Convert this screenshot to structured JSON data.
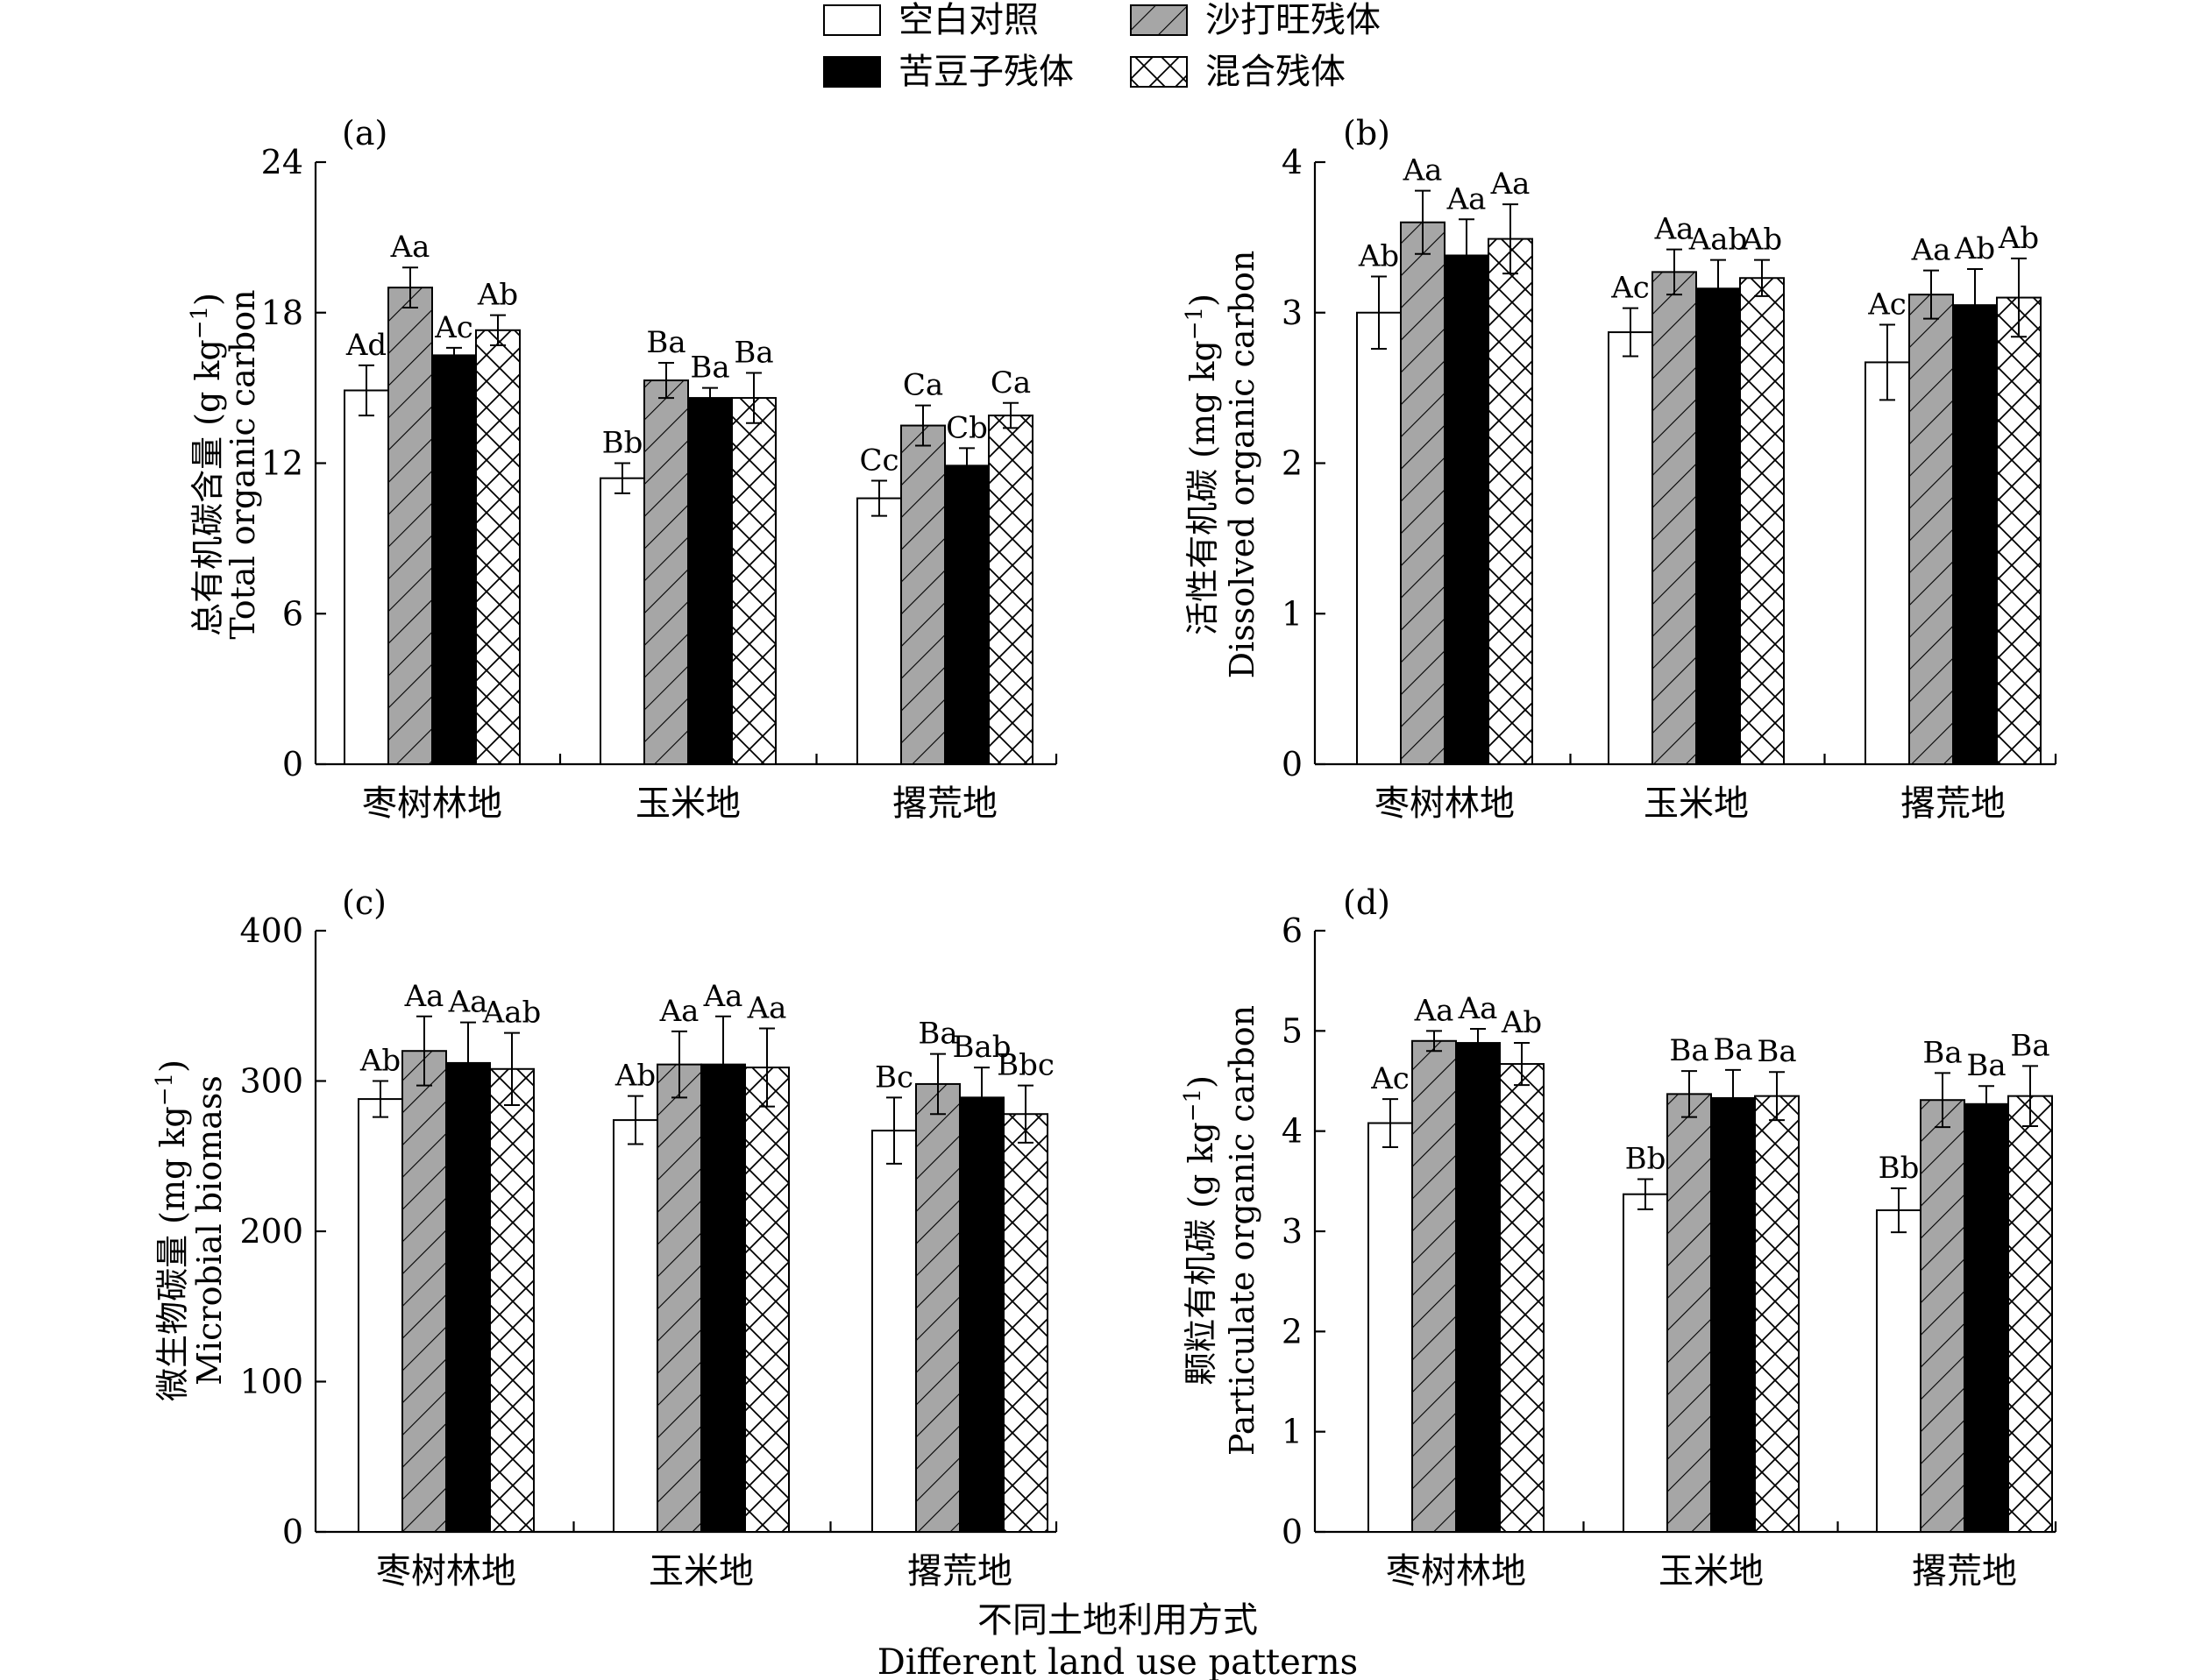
{
  "figure": {
    "xlabel_cn": "不同土地利用方式",
    "xlabel_en": "Different land use patterns"
  },
  "legend": {
    "items": [
      {
        "label": "空白对照",
        "pattern": "blank"
      },
      {
        "label": "沙打旺残体",
        "pattern": "hatch"
      },
      {
        "label": "苦豆子残体",
        "pattern": "solid"
      },
      {
        "label": "混合残体",
        "pattern": "cross"
      }
    ]
  },
  "colors": {
    "hatch_fill": "#a6a6a6",
    "solid_fill": "#000000",
    "stroke": "#000000"
  },
  "chart_data": [
    {
      "type": "bar",
      "panel_label": "(a)",
      "ylabel_cn": "总有机碳含量 (g kg",
      "ylabel_unit_sup": "−1",
      "ylabel_close": ")",
      "ylabel_en": "Total organic carbon",
      "ylim": [
        0,
        24
      ],
      "yticks": [
        "0",
        "6",
        "12",
        "18",
        "24"
      ],
      "categories": [
        "枣树林地",
        "玉米地",
        "撂荒地"
      ],
      "series": [
        {
          "name": "空白对照",
          "values": [
            14.9,
            11.4,
            10.6
          ],
          "errors": [
            1.0,
            0.6,
            0.7
          ]
        },
        {
          "name": "沙打旺残体",
          "values": [
            19.0,
            15.3,
            13.5
          ],
          "errors": [
            0.8,
            0.7,
            0.8
          ]
        },
        {
          "name": "苦豆子残体",
          "values": [
            16.3,
            14.6,
            11.9
          ],
          "errors": [
            0.3,
            0.4,
            0.7
          ]
        },
        {
          "name": "混合残体",
          "values": [
            17.3,
            14.6,
            13.9
          ],
          "errors": [
            0.6,
            1.0,
            0.5
          ]
        }
      ],
      "annotations": [
        [
          "Ad",
          "Aa",
          "Ac",
          "Ab"
        ],
        [
          "Bb",
          "Ba",
          "Ba",
          "Ba"
        ],
        [
          "Cc",
          "Ca",
          "Cb",
          "Ca"
        ]
      ]
    },
    {
      "type": "bar",
      "panel_label": "(b)",
      "ylabel_cn": "活性有机碳 (mg kg",
      "ylabel_unit_sup": "−1",
      "ylabel_close": ")",
      "ylabel_en": "Dissolved organic carbon",
      "ylim": [
        0,
        4
      ],
      "yticks": [
        "0",
        "1",
        "2",
        "3",
        "4"
      ],
      "categories": [
        "枣树林地",
        "玉米地",
        "撂荒地"
      ],
      "series": [
        {
          "name": "空白对照",
          "values": [
            3.0,
            2.87,
            2.67
          ],
          "errors": [
            0.24,
            0.16,
            0.25
          ]
        },
        {
          "name": "沙打旺残体",
          "values": [
            3.6,
            3.27,
            3.12
          ],
          "errors": [
            0.21,
            0.15,
            0.16
          ]
        },
        {
          "name": "苦豆子残体",
          "values": [
            3.38,
            3.16,
            3.05
          ],
          "errors": [
            0.24,
            0.19,
            0.24
          ]
        },
        {
          "name": "混合残体",
          "values": [
            3.49,
            3.23,
            3.1
          ],
          "errors": [
            0.23,
            0.12,
            0.26
          ]
        }
      ],
      "annotations": [
        [
          "Ab",
          "Aa",
          "Aa",
          "Aa"
        ],
        [
          "Ac",
          "Aa",
          "Aab",
          "Ab"
        ],
        [
          "Ac",
          "Aa",
          "Ab",
          "Ab"
        ]
      ]
    },
    {
      "type": "bar",
      "panel_label": "(c)",
      "ylabel_cn": "微生物碳量 (mg kg",
      "ylabel_unit_sup": "−1",
      "ylabel_close": ")",
      "ylabel_en": "Microbial biomass",
      "ylim": [
        0,
        400
      ],
      "yticks": [
        "0",
        "100",
        "200",
        "300",
        "400"
      ],
      "categories": [
        "枣树林地",
        "玉米地",
        "撂荒地"
      ],
      "series": [
        {
          "name": "空白对照",
          "values": [
            288,
            274,
            267
          ],
          "errors": [
            12,
            16,
            22
          ]
        },
        {
          "name": "沙打旺残体",
          "values": [
            320,
            311,
            298
          ],
          "errors": [
            23,
            22,
            20
          ]
        },
        {
          "name": "苦豆子残体",
          "values": [
            312,
            311,
            289
          ],
          "errors": [
            27,
            32,
            20
          ]
        },
        {
          "name": "混合残体",
          "values": [
            308,
            309,
            278
          ],
          "errors": [
            24,
            26,
            19
          ]
        }
      ],
      "annotations": [
        [
          "Ab",
          "Aa",
          "Aa",
          "Aab"
        ],
        [
          "Ab",
          "Aa",
          "Aa",
          "Aa"
        ],
        [
          "Bc",
          "Ba",
          "Bab",
          "Bbc"
        ]
      ]
    },
    {
      "type": "bar",
      "panel_label": "(d)",
      "ylabel_cn": "颗粒有机碳 (g kg",
      "ylabel_unit_sup": "−1",
      "ylabel_close": ")",
      "ylabel_en": "Particulate organic carbon",
      "ylim": [
        0,
        6
      ],
      "yticks": [
        "0",
        "1",
        "2",
        "3",
        "4",
        "5",
        "6"
      ],
      "categories": [
        "枣树林地",
        "玉米地",
        "撂荒地"
      ],
      "series": [
        {
          "name": "空白对照",
          "values": [
            4.08,
            3.37,
            3.21
          ],
          "errors": [
            0.24,
            0.15,
            0.22
          ]
        },
        {
          "name": "沙打旺残体",
          "values": [
            4.9,
            4.37,
            4.31
          ],
          "errors": [
            0.1,
            0.23,
            0.27
          ]
        },
        {
          "name": "苦豆子残体",
          "values": [
            4.88,
            4.33,
            4.27
          ],
          "errors": [
            0.14,
            0.28,
            0.18
          ]
        },
        {
          "name": "混合残体",
          "values": [
            4.67,
            4.35,
            4.35
          ],
          "errors": [
            0.21,
            0.24,
            0.3
          ]
        }
      ],
      "annotations": [
        [
          "Ac",
          "Aa",
          "Aa",
          "Ab"
        ],
        [
          "Bb",
          "Ba",
          "Ba",
          "Ba"
        ],
        [
          "Bb",
          "Ba",
          "Ba",
          "Ba"
        ]
      ]
    }
  ]
}
